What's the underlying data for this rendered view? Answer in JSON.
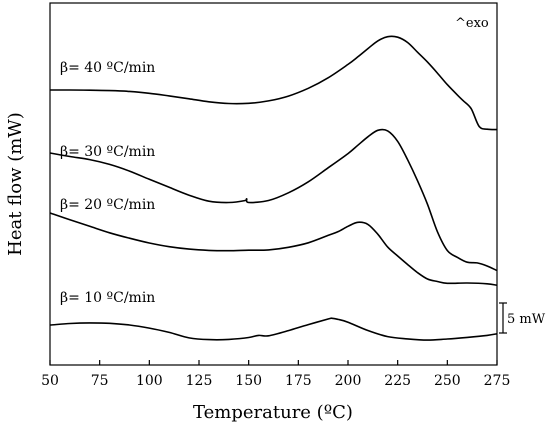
{
  "chart_data": {
    "type": "line",
    "title": "",
    "xlabel": "Temperature (ºC)",
    "ylabel": "Heat flow (mW)",
    "xlim": [
      50,
      275
    ],
    "x_ticks": [
      50,
      75,
      100,
      125,
      150,
      175,
      200,
      225,
      250,
      275
    ],
    "x_tick_labels": [
      "50",
      "75",
      "100",
      "125",
      "150",
      "175",
      "200",
      "225",
      "250",
      "275"
    ],
    "y_ticks_shown": false,
    "grid": false,
    "legend": "none",
    "annotations": {
      "exo": "^exo",
      "scale_bar": "5 mW"
    },
    "series": [
      {
        "name": "β= 40 ºC/min",
        "x": [
          50,
          60,
          70,
          80,
          90,
          100,
          110,
          120,
          130,
          140,
          150,
          160,
          170,
          180,
          190,
          200,
          205,
          210,
          215,
          220,
          225,
          230,
          235,
          240,
          245,
          250,
          255,
          258,
          262,
          266,
          270,
          275
        ],
        "y": [
          90.0,
          90.0,
          90.2,
          90.6,
          91.4,
          93.3,
          95.9,
          98.8,
          101.8,
          103.5,
          103.3,
          100.9,
          96.1,
          88.3,
          77.8,
          64.4,
          56.8,
          48.6,
          40.9,
          36.7,
          37.2,
          42.5,
          52.2,
          62.1,
          73.1,
          84.6,
          94.9,
          100.7,
          108.7,
          126.4,
          129.2,
          129.6
        ]
      },
      {
        "name": "β= 30 ºC/min",
        "x": [
          50,
          60,
          70,
          80,
          90,
          100,
          110,
          120,
          130,
          140,
          148,
          149,
          150,
          160,
          170,
          180,
          190,
          200,
          205,
          210,
          215,
          220,
          225,
          230,
          235,
          240,
          245,
          250,
          255,
          260,
          265,
          270,
          275
        ],
        "y": [
          153.0,
          156.5,
          159.6,
          164.4,
          171.1,
          179.3,
          187.3,
          195.2,
          201.2,
          202.5,
          200.6,
          198.8,
          202.5,
          200.5,
          192.8,
          181.8,
          167.8,
          153.6,
          145.2,
          136.8,
          130.3,
          130.9,
          141.4,
          159.7,
          180.7,
          204.3,
          231.7,
          250.5,
          257.3,
          262.2,
          262.9,
          266.0,
          270.5
        ]
      },
      {
        "name": "β= 20 ºC/min",
        "x": [
          50,
          60,
          70,
          80,
          90,
          100,
          110,
          120,
          130,
          140,
          150,
          160,
          170,
          180,
          190,
          195,
          200,
          205,
          210,
          215,
          220,
          225,
          230,
          235,
          240,
          245,
          250,
          260,
          270,
          275
        ],
        "y": [
          213.0,
          219.8,
          226.3,
          232.8,
          238.2,
          243.0,
          246.7,
          249.1,
          250.4,
          250.7,
          250.2,
          249.9,
          247.3,
          242.8,
          235.4,
          231.6,
          226.3,
          222.3,
          224.4,
          234.2,
          247.1,
          256.0,
          264.5,
          272.6,
          279.0,
          281.5,
          283.3,
          283.0,
          283.8,
          285.2
        ]
      },
      {
        "name": "β= 10 ºC/min",
        "x": [
          50,
          60,
          70,
          80,
          90,
          100,
          110,
          120,
          130,
          140,
          150,
          155,
          160,
          170,
          180,
          190,
          192,
          195,
          200,
          210,
          220,
          230,
          240,
          250,
          260,
          270,
          275
        ],
        "y": [
          325.0,
          323.5,
          322.9,
          323.3,
          325.0,
          328.1,
          332.4,
          337.9,
          339.6,
          339.4,
          337.5,
          335.4,
          335.8,
          330.6,
          324.6,
          319.0,
          318.3,
          319.4,
          322.2,
          330.5,
          336.6,
          338.9,
          340.1,
          339.0,
          337.4,
          335.4,
          333.8
        ]
      }
    ]
  }
}
